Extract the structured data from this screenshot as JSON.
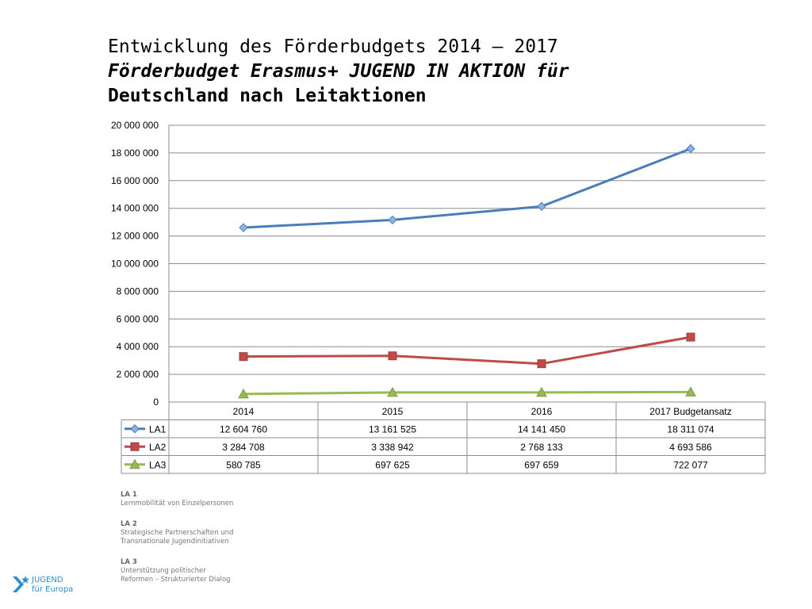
{
  "title": {
    "line1": "Entwicklung des Förderbudgets 2014 – 2017",
    "line2": "Förderbudget Erasmus+ JUGEND IN AKTION für",
    "line3": "Deutschland nach Leitaktionen"
  },
  "chart_data": {
    "type": "line",
    "categories": [
      "2014",
      "2015",
      "2016",
      "2017 Budgetansatz"
    ],
    "series": [
      {
        "name": "LA1",
        "values": [
          12604760,
          13161525,
          14141450,
          18311074
        ],
        "labels": [
          "12 604 760",
          "13 161 525",
          "14 141 450",
          "18 311 074"
        ],
        "color": "#4a7ebb",
        "marker": "diamond"
      },
      {
        "name": "LA2",
        "values": [
          3284708,
          3338942,
          2768133,
          4693586
        ],
        "labels": [
          "3 284 708",
          "3 338 942",
          "2 768 133",
          "4 693 586"
        ],
        "color": "#be4b48",
        "marker": "square"
      },
      {
        "name": "LA3",
        "values": [
          580785,
          697625,
          697659,
          722077
        ],
        "labels": [
          "580 785",
          "697 625",
          "697 659",
          "722 077"
        ],
        "color": "#98b954",
        "marker": "triangle"
      }
    ],
    "ylim": [
      0,
      20000000
    ],
    "yticks": [
      0,
      2000000,
      4000000,
      6000000,
      8000000,
      10000000,
      12000000,
      14000000,
      16000000,
      18000000,
      20000000
    ],
    "ytick_labels": [
      "0",
      "2 000 000",
      "4 000 000",
      "6 000 000",
      "8 000 000",
      "10 000 000",
      "12 000 000",
      "14 000 000",
      "16 000 000",
      "18 000 000",
      "20 000 000"
    ],
    "grid": true,
    "legend": "data-table"
  },
  "notes": [
    {
      "heading": "LA 1",
      "lines": [
        "Lernmobilität von Einzelpersonen"
      ]
    },
    {
      "heading": "LA 2",
      "lines": [
        "Strategische Partnerschaften und",
        "Transnationale Jugendinitiativen"
      ]
    },
    {
      "heading": "LA 3",
      "lines": [
        "Unterstützung politischer",
        "Reformen – Strukturierter Dialog"
      ]
    }
  ],
  "logo": {
    "line1": "JUGEND",
    "line2": "für Europa",
    "color": "#2a8fd0",
    "icon": "star-arrow-logo-icon"
  }
}
